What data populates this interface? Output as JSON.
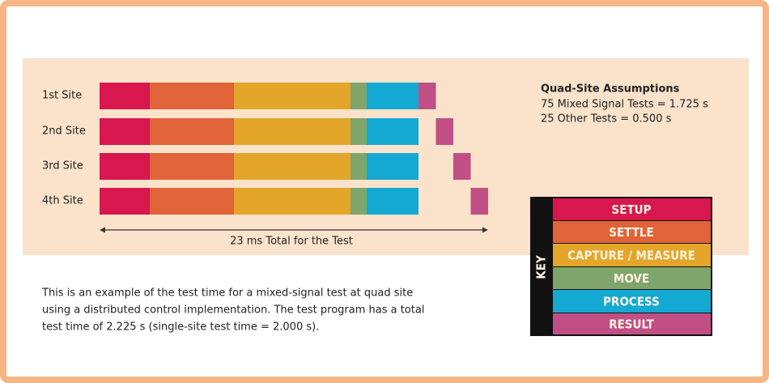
{
  "rows": [
    "1st Site",
    "2nd Site",
    "3rd Site",
    "4th Site"
  ],
  "total_label": "23 ms Total for the Test",
  "assumptions": {
    "title": "Quad-Site Assumptions",
    "lines": [
      "75 Mixed Signal Tests = 1.725 s",
      "25 Other Tests = 0.500 s"
    ]
  },
  "key": {
    "title": "KEY",
    "items": [
      "SETUP",
      "SETTLE",
      "CAPTURE / MEASURE",
      "MOVE",
      "PROCESS",
      "RESULT"
    ]
  },
  "caption": [
    "This is an example of the test time for a mixed-signal test at quad site",
    "using a distributed control implementation. The test program has a total",
    "test time of 2.225 s (single-site test time = 2.000 s)."
  ]
}
